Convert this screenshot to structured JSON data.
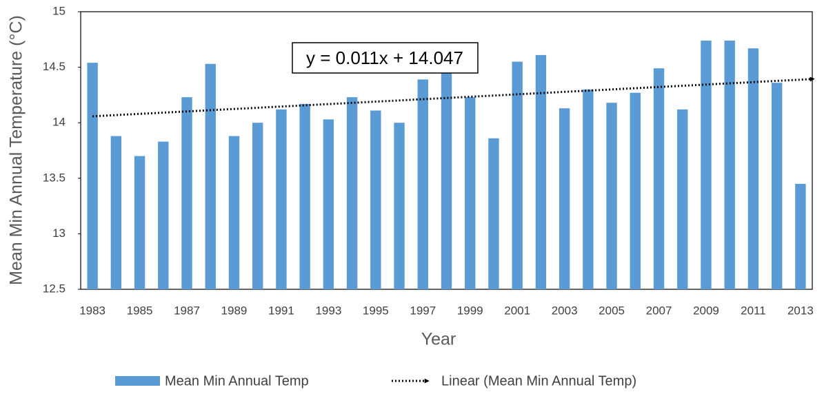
{
  "chart_data": {
    "type": "bar",
    "x_label": "Year",
    "y_label": "Mean Min Annual Temperature  (°C)",
    "categories": [
      "1983",
      null,
      "1985",
      null,
      "1987",
      null,
      "1989",
      null,
      "1991",
      null,
      "1993",
      null,
      "1995",
      null,
      "1997",
      null,
      "1999",
      null,
      "2001",
      null,
      "2003",
      null,
      "2005",
      null,
      "2007",
      null,
      "2009",
      null,
      "2011",
      null,
      "2013"
    ],
    "series": [
      {
        "name": "Mean Min Annual Temp",
        "color": "#5b9bd5",
        "values": [
          14.54,
          13.88,
          13.7,
          13.83,
          14.23,
          14.53,
          13.88,
          14.0,
          14.12,
          14.17,
          14.03,
          14.23,
          14.11,
          14.0,
          14.39,
          14.45,
          14.23,
          13.86,
          14.55,
          14.61,
          14.13,
          14.3,
          14.18,
          14.27,
          14.49,
          14.12,
          14.74,
          14.74,
          14.67,
          14.36,
          13.45
        ]
      }
    ],
    "trendline": {
      "name": "Linear (Mean Min Annual Temp)",
      "label": "y = 0.011x + 14.047",
      "slope": 0.011,
      "intercept": 14.047,
      "color": "#000000"
    },
    "ylim": [
      12.5,
      15
    ],
    "yticks": [
      12.5,
      13,
      13.5,
      14,
      14.5,
      15
    ],
    "grid": false
  }
}
